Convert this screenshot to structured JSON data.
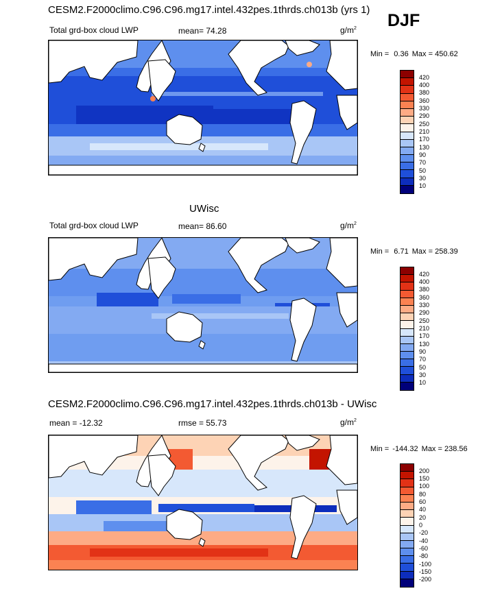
{
  "figure": {
    "title_top": "CESM2.F2000climo.C96.C96.mg17.intel.432pes.1thrds.ch013b (yrs 1)",
    "season": "DJF",
    "title_mid": "UWisc",
    "title_bottom": "CESM2.F2000climo.C96.C96.mg17.intel.432pes.1thrds.ch013b - UWisc"
  },
  "colors": {
    "blue_dark": "#00007a",
    "blue_mid": "#1f4fd9",
    "blue_light": "#6f9df0",
    "neutral": "#fdf3ea",
    "red_mid": "#ef5b32",
    "red_dark": "#8c0000"
  },
  "chart_data": [
    {
      "type": "heatmap",
      "variable": "Total grd-box cloud LWP",
      "units": "g/m",
      "units_exp": "2",
      "mean_label": "mean=",
      "mean": "74.28",
      "min_label": "Min =",
      "min": "0.36",
      "max_label": "Max =",
      "max": "450.62",
      "levels": [
        "420",
        "400",
        "380",
        "360",
        "330",
        "290",
        "250",
        "210",
        "170",
        "130",
        "90",
        "70",
        "50",
        "30",
        "10"
      ],
      "colors": [
        "#8c0000",
        "#c31400",
        "#e23216",
        "#f35a32",
        "#fb8252",
        "#fdab85",
        "#fdd3b5",
        "#fdf3ea",
        "#d7e7fb",
        "#a9c6f6",
        "#83aaf2",
        "#5e8fee",
        "#3a6ee6",
        "#1f4fd9",
        "#0d2dbc",
        "#00007a"
      ]
    },
    {
      "type": "heatmap",
      "variable": "Total grd-box cloud LWP",
      "units": "g/m",
      "units_exp": "2",
      "mean_label": "mean=",
      "mean": "86.60",
      "min_label": "Min =",
      "min": "6.71",
      "max_label": "Max =",
      "max": "258.39",
      "levels": [
        "420",
        "400",
        "380",
        "360",
        "330",
        "290",
        "250",
        "210",
        "170",
        "130",
        "90",
        "70",
        "50",
        "30",
        "10"
      ],
      "colors": [
        "#8c0000",
        "#c31400",
        "#e23216",
        "#f35a32",
        "#fb8252",
        "#fdab85",
        "#fdd3b5",
        "#fdf3ea",
        "#d7e7fb",
        "#a9c6f6",
        "#83aaf2",
        "#5e8fee",
        "#3a6ee6",
        "#1f4fd9",
        "#0d2dbc",
        "#00007a"
      ]
    },
    {
      "type": "heatmap",
      "variable": "",
      "units": "g/m",
      "units_exp": "2",
      "mean_label": "mean =",
      "mean": "-12.32",
      "rmse_label": "rmse =",
      "rmse": "55.73",
      "min_label": "Min =",
      "min": "-144.32",
      "max_label": "Max =",
      "max": "238.56",
      "levels": [
        "200",
        "150",
        "100",
        "80",
        "60",
        "40",
        "20",
        "0",
        "-20",
        "-40",
        "-60",
        "-80",
        "-100",
        "-150",
        "-200"
      ],
      "colors": [
        "#8c0000",
        "#c31400",
        "#e23216",
        "#f35a32",
        "#fb8252",
        "#fdab85",
        "#fdd3b5",
        "#fdf3ea",
        "#d7e7fb",
        "#a9c6f6",
        "#83aaf2",
        "#5e8fee",
        "#3a6ee6",
        "#1f4fd9",
        "#0d2dbc",
        "#00007a"
      ]
    }
  ]
}
